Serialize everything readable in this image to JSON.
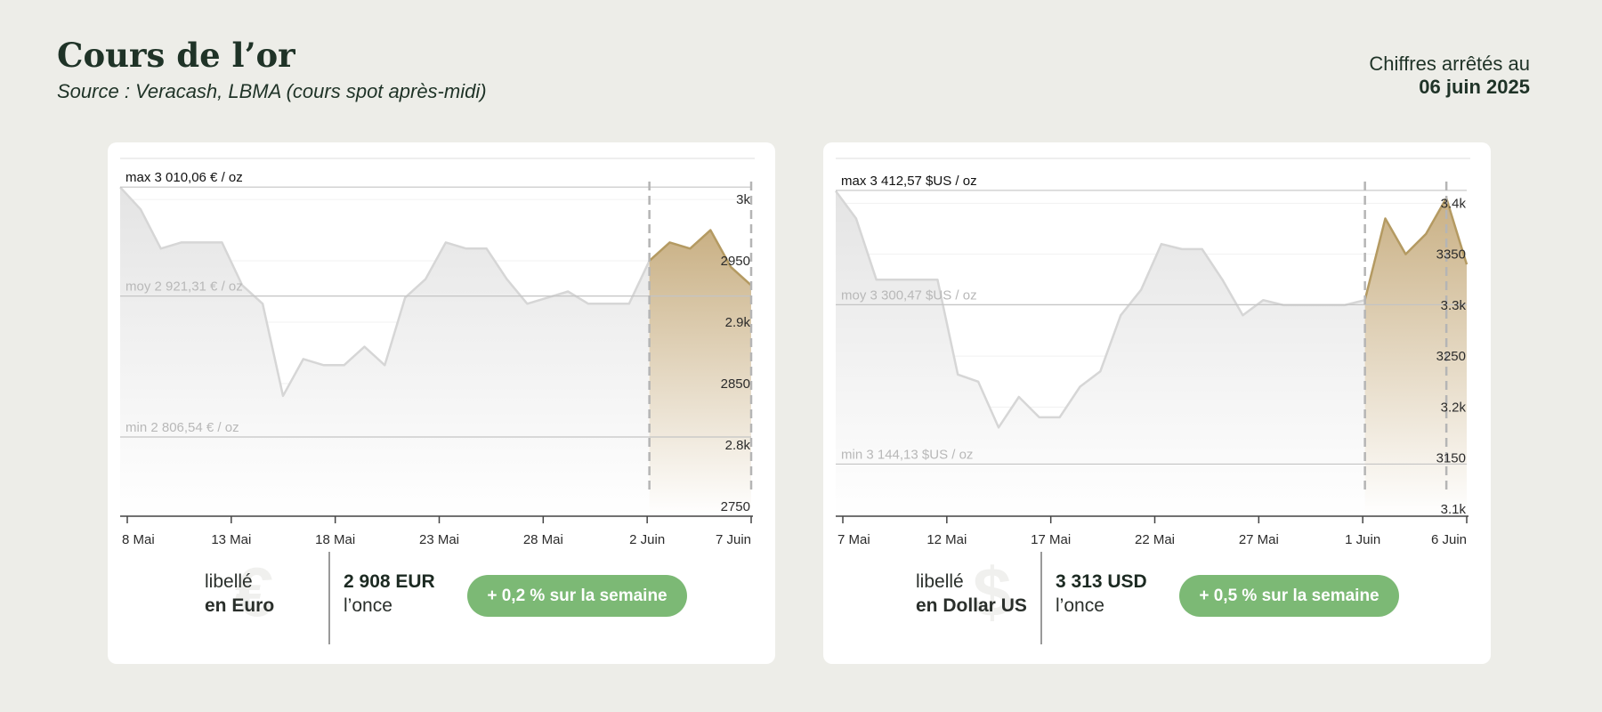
{
  "header": {
    "title": "Cours de l’or",
    "subtitle": "Source : Veracash, LBMA (cours spot après-midi)",
    "asof_label": "Chiffres arrêtés au",
    "asof_date": "06 juin 2025"
  },
  "colors": {
    "background": "#edede8",
    "history_line": "#d6d6d6",
    "history_fill": "#e4e4e4",
    "week_line": "#b49a62",
    "week_fill": "#c9b084",
    "pill": "#7cb975",
    "title": "#1f3327"
  },
  "cards": [
    {
      "symbol_icon": "euro-icon",
      "label_line1": "libellé",
      "label_line2": "en Euro",
      "price": "2 908 EUR",
      "price_unit": "l’once",
      "change": "+ 0,2 % sur la semaine"
    },
    {
      "symbol_icon": "dollar-icon",
      "label_line1": "libellé",
      "label_line2": "en Dollar US",
      "price": "3 313 USD",
      "price_unit": "l’once",
      "change": "+ 0,5 % sur la semaine"
    }
  ],
  "chart_data": [
    {
      "type": "area",
      "currency": "EUR",
      "x_start": "2025-05-07",
      "x_end": "2025-06-07",
      "x_ticks": [
        "8 Mai",
        "13 Mai",
        "18 Mai",
        "23 Mai",
        "28 Mai",
        "2 Juin",
        "7 Juin"
      ],
      "y_ticks": [
        "3k",
        "2950",
        "2.9k",
        "2850",
        "2.8k",
        "2750"
      ],
      "ylim": [
        2742,
        3016
      ],
      "highlight_start": "2025-06-02",
      "highlight_end": "2025-06-07",
      "ref_lines": [
        {
          "label": "max 3 010,06 € / oz",
          "value": 3010.06
        },
        {
          "label": "moy 2 921,31 € / oz",
          "value": 2921.31
        },
        {
          "label": "min 2 806,54 € / oz",
          "value": 2806.54
        }
      ],
      "x": [
        "2025-05-07",
        "2025-05-08",
        "2025-05-09",
        "2025-05-10",
        "2025-05-11",
        "2025-05-12",
        "2025-05-13",
        "2025-05-14",
        "2025-05-15",
        "2025-05-16",
        "2025-05-17",
        "2025-05-18",
        "2025-05-19",
        "2025-05-20",
        "2025-05-21",
        "2025-05-22",
        "2025-05-23",
        "2025-05-24",
        "2025-05-25",
        "2025-05-26",
        "2025-05-27",
        "2025-05-28",
        "2025-05-29",
        "2025-05-30",
        "2025-05-31",
        "2025-06-01",
        "2025-06-02",
        "2025-06-03",
        "2025-06-04",
        "2025-06-05",
        "2025-06-06",
        "2025-06-07"
      ],
      "values": [
        3010,
        2992,
        2960,
        2965,
        2965,
        2965,
        2930,
        2915,
        2840,
        2870,
        2865,
        2865,
        2880,
        2865,
        2920,
        2935,
        2965,
        2960,
        2960,
        2935,
        2915,
        2920,
        2925,
        2915,
        2915,
        2915,
        2950,
        2965,
        2960,
        2975,
        2945,
        2930
      ]
    },
    {
      "type": "area",
      "currency": "USD",
      "x_start": "2025-05-07",
      "x_end": "2025-06-07",
      "x_ticks": [
        "7 Mai",
        "12 Mai",
        "17 Mai",
        "22 Mai",
        "27 Mai",
        "1 Juin",
        "6 Juin"
      ],
      "y_ticks": [
        "3.4k",
        "3350",
        "3.3k",
        "3250",
        "3.2k",
        "3150",
        "3.1k"
      ],
      "ylim": [
        3093,
        3423
      ],
      "highlight_start": "2025-06-02",
      "highlight_end": "2025-06-06",
      "ref_lines": [
        {
          "label": "max 3 412,57 $US / oz",
          "value": 3412.57
        },
        {
          "label": "moy 3 300,47 $US / oz",
          "value": 3300.47
        },
        {
          "label": "min 3 144,13 $US / oz",
          "value": 3144.13
        }
      ],
      "x": [
        "2025-05-07",
        "2025-05-08",
        "2025-05-09",
        "2025-05-10",
        "2025-05-11",
        "2025-05-12",
        "2025-05-13",
        "2025-05-14",
        "2025-05-15",
        "2025-05-16",
        "2025-05-17",
        "2025-05-18",
        "2025-05-19",
        "2025-05-20",
        "2025-05-21",
        "2025-05-22",
        "2025-05-23",
        "2025-05-24",
        "2025-05-25",
        "2025-05-26",
        "2025-05-27",
        "2025-05-28",
        "2025-05-29",
        "2025-05-30",
        "2025-05-31",
        "2025-06-01",
        "2025-06-02",
        "2025-06-03",
        "2025-06-04",
        "2025-06-05",
        "2025-06-06",
        "2025-06-07"
      ],
      "values": [
        3412,
        3385,
        3325,
        3325,
        3325,
        3325,
        3232,
        3225,
        3180,
        3210,
        3190,
        3190,
        3220,
        3235,
        3290,
        3315,
        3360,
        3355,
        3355,
        3325,
        3290,
        3305,
        3300,
        3300,
        3300,
        3300,
        3305,
        3385,
        3350,
        3370,
        3405,
        3340
      ]
    }
  ]
}
